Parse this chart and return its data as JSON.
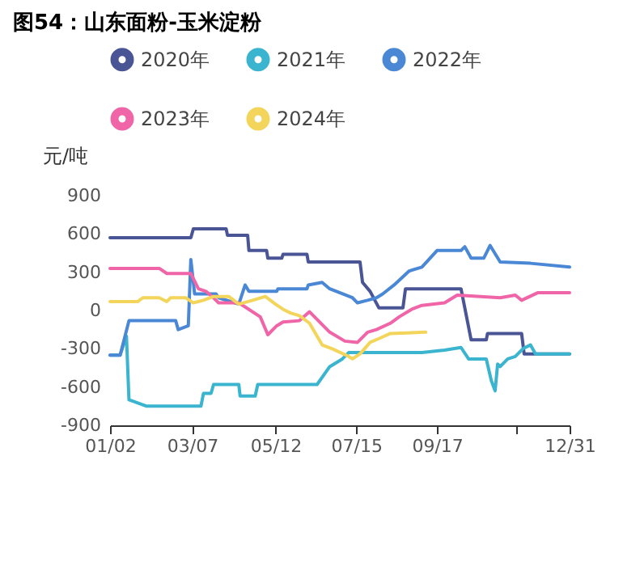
{
  "chart_data": {
    "type": "line",
    "title": "图54：山东面粉-玉米淀粉",
    "ylabel": "元/吨",
    "legend": "top",
    "marker": "none",
    "line_style": "solid",
    "grid": false,
    "xlim": [
      "--01-02",
      "--12-31"
    ],
    "ylim": [
      -900,
      900
    ],
    "yticks": [
      -900,
      -600,
      -300,
      0,
      300,
      600,
      900
    ],
    "xticks": [
      {
        "value": "--01-02",
        "label": "01/02"
      },
      {
        "value": "--03-07",
        "label": "03/07"
      },
      {
        "value": "--05-12",
        "label": "05/12"
      },
      {
        "value": "--07-15",
        "label": "07/15"
      },
      {
        "value": "--09-17",
        "label": "09/17"
      },
      {
        "value": "--11-19",
        "label": null
      },
      {
        "value": "--12-31",
        "label": "12/31"
      }
    ],
    "series": [
      {
        "name": "2020年",
        "color": "#4a5596",
        "x": [
          "--01-02",
          "--03-06",
          "--03-08",
          "--04-03",
          "--04-04",
          "--04-20",
          "--04-21",
          "--05-05",
          "--05-06",
          "--05-17",
          "--05-18",
          "--06-06",
          "--06-07",
          "--07-18",
          "--07-20",
          "--07-26",
          "--08-02",
          "--08-21",
          "--08-23",
          "--10-06",
          "--10-14",
          "--10-26",
          "--10-27",
          "--11-23",
          "--11-25",
          "--12-31"
        ],
        "values": [
          570,
          570,
          640,
          640,
          590,
          590,
          470,
          470,
          410,
          410,
          440,
          440,
          380,
          380,
          220,
          150,
          20,
          20,
          170,
          170,
          -230,
          -230,
          -180,
          -180,
          -340,
          -340
        ]
      },
      {
        "name": "2021年",
        "color": "#3bb5cf",
        "x": [
          "--01-02",
          "--01-10",
          "--01-15",
          "--01-17",
          "--01-31",
          "--03-14",
          "--03-16",
          "--03-22",
          "--03-24",
          "--04-13",
          "--04-14",
          "--04-26",
          "--04-28",
          "--06-14",
          "--06-24",
          "--07-04",
          "--07-09",
          "--09-05",
          "--09-23",
          "--10-06",
          "--10-12",
          "--10-26",
          "--10-30",
          "--11-02",
          "--11-04",
          "--11-06",
          "--11-12",
          "--11-18",
          "--11-24",
          "--11-30",
          "--12-04",
          "--12-31"
        ],
        "values": [
          -350,
          -350,
          -200,
          -700,
          -750,
          -750,
          -650,
          -650,
          -580,
          -580,
          -670,
          -670,
          -580,
          -580,
          -440,
          -380,
          -330,
          -330,
          -310,
          -290,
          -380,
          -380,
          -550,
          -630,
          -420,
          -440,
          -380,
          -360,
          -300,
          -270,
          -340,
          -340
        ]
      },
      {
        "name": "2022年",
        "color": "#4a88d6",
        "x": [
          "--01-02",
          "--01-10",
          "--01-17",
          "--02-23",
          "--02-25",
          "--03-04",
          "--03-06",
          "--03-09",
          "--03-26",
          "--03-28",
          "--04-13",
          "--04-18",
          "--04-21",
          "--05-13",
          "--05-14",
          "--06-06",
          "--06-07",
          "--06-18",
          "--06-24",
          "--07-12",
          "--07-16",
          "--07-24",
          "--07-31",
          "--08-05",
          "--08-14",
          "--08-26",
          "--09-05",
          "--09-17",
          "--10-06",
          "--10-09",
          "--10-14",
          "--10-24",
          "--10-29",
          "--11-06",
          "--11-30",
          "--12-31"
        ],
        "values": [
          -350,
          -350,
          -80,
          -80,
          -150,
          -120,
          400,
          130,
          130,
          100,
          50,
          200,
          150,
          150,
          170,
          170,
          200,
          220,
          170,
          100,
          60,
          80,
          100,
          130,
          200,
          310,
          340,
          470,
          470,
          500,
          410,
          410,
          510,
          380,
          370,
          340
        ]
      },
      {
        "name": "2023年",
        "color": "#f064a8",
        "x": [
          "--01-02",
          "--02-10",
          "--02-16",
          "--03-06",
          "--03-08",
          "--03-12",
          "--03-18",
          "--03-24",
          "--03-28",
          "--04-13",
          "--04-30",
          "--05-06",
          "--05-13",
          "--05-18",
          "--05-31",
          "--06-08",
          "--06-24",
          "--07-06",
          "--07-16",
          "--07-24",
          "--07-31",
          "--08-11",
          "--08-18",
          "--08-28",
          "--09-05",
          "--09-23",
          "--10-03",
          "--11-06",
          "--11-18",
          "--11-23",
          "--12-06",
          "--12-31"
        ],
        "values": [
          330,
          330,
          290,
          290,
          250,
          170,
          150,
          100,
          60,
          60,
          -50,
          -190,
          -120,
          -90,
          -80,
          -10,
          -170,
          -240,
          -250,
          -170,
          -150,
          -100,
          -50,
          10,
          40,
          60,
          120,
          100,
          120,
          80,
          140,
          140
        ]
      },
      {
        "name": "2024年",
        "color": "#f2d55a",
        "x": [
          "--01-02",
          "--01-24",
          "--01-28",
          "--02-10",
          "--02-16",
          "--02-19",
          "--03-02",
          "--03-08",
          "--03-16",
          "--03-24",
          "--04-05",
          "--04-13",
          "--04-24",
          "--05-04",
          "--05-12",
          "--05-18",
          "--05-24",
          "--05-31",
          "--06-08",
          "--06-18",
          "--06-26",
          "--07-09",
          "--07-12",
          "--07-18",
          "--07-26",
          "--08-02",
          "--08-11",
          "--09-08"
        ],
        "values": [
          70,
          70,
          100,
          100,
          70,
          100,
          100,
          60,
          80,
          110,
          110,
          50,
          80,
          110,
          50,
          10,
          -20,
          -40,
          -100,
          -270,
          -300,
          -360,
          -380,
          -340,
          -250,
          -220,
          -180,
          -170
        ]
      }
    ]
  }
}
